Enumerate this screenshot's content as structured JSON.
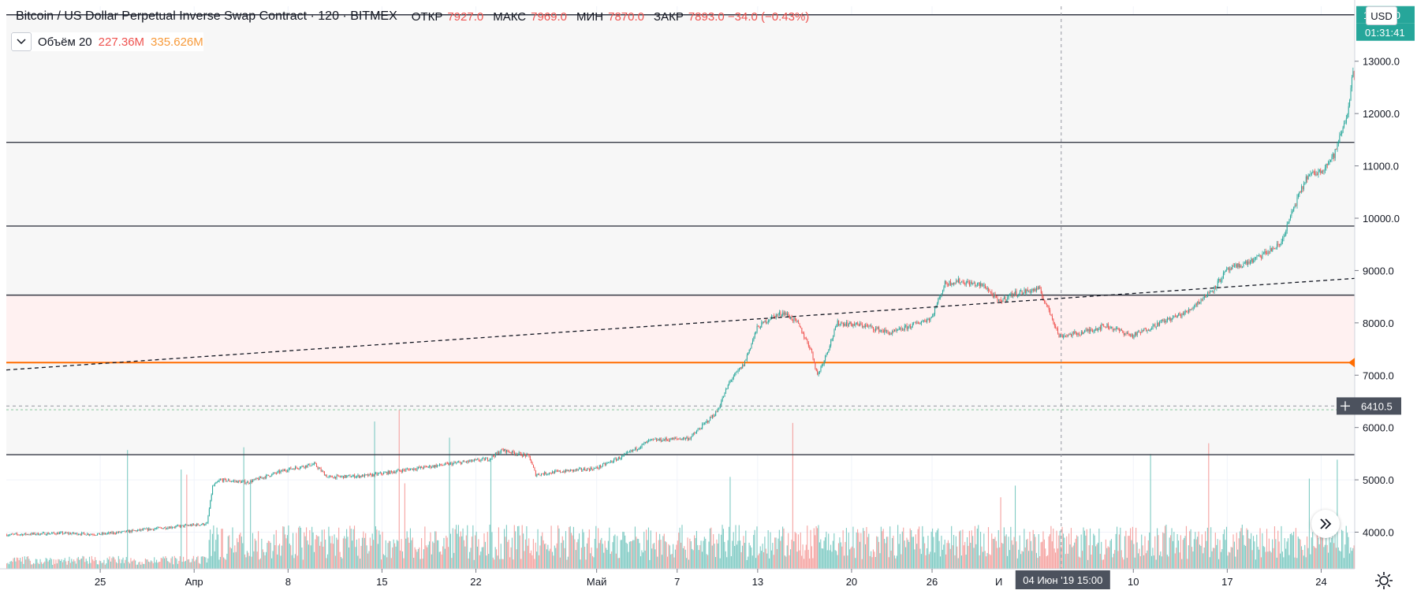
{
  "header": {
    "title": "Bitcoin / US Dollar Perpetual Inverse Swap Contract · 120 · BITMEX",
    "ohlc": [
      {
        "label": "ОТКР",
        "value": "7927.0"
      },
      {
        "label": "МАКС",
        "value": "7969.0"
      },
      {
        "label": "МИН",
        "value": "7870.0"
      },
      {
        "label": "ЗАКР",
        "value": "7893.0 −34.0 (−0.43%)"
      }
    ]
  },
  "volume_legend": {
    "name": "Объём 20",
    "value1": "227.36M",
    "value2": "335.626M"
  },
  "price_axis": {
    "unit": "USD",
    "last_price_label": "13888.0",
    "countdown_label": "01:31:41",
    "crosshair_price_label": "6410.5"
  },
  "time_axis": {
    "crosshair_label": "04 Июн '19   15:00",
    "hidden_label": "И"
  },
  "icons": {
    "collapse": "chevron-down-icon",
    "scroll": "double-chevron-right-icon",
    "settings": "gear-icon"
  },
  "colors": {
    "up": "#26a69a",
    "down": "#ef5350",
    "up_volume": "#80cbc4",
    "down_volume": "#f5a3a1",
    "highlight_line": "#ff6d00",
    "zone_fill": "#fff1f1",
    "label_green": "#26a69a",
    "label_dark": "#4c525e"
  },
  "chart_data": {
    "type": "candlestick",
    "price_ticks": [
      4000,
      5000,
      6000,
      7000,
      8000,
      9000,
      10000,
      11000,
      12000,
      13000
    ],
    "price_tick_labels": [
      "4000.0",
      "5000.0",
      "6000.0",
      "7000.0",
      "8000.0",
      "9000.0",
      "10000.0",
      "11000.0",
      "12000.0",
      "13000.0"
    ],
    "ylim": [
      3300,
      14050
    ],
    "xlim": [
      "2019-03-18",
      "2019-06-26T12:00"
    ],
    "date_ticks": [
      {
        "date": "2019-03-25",
        "label": "25"
      },
      {
        "date": "2019-04-01",
        "label": "Апр"
      },
      {
        "date": "2019-04-08",
        "label": "8"
      },
      {
        "date": "2019-04-15",
        "label": "15"
      },
      {
        "date": "2019-04-22",
        "label": "22"
      },
      {
        "date": "2019-05-01",
        "label": "Май"
      },
      {
        "date": "2019-05-07",
        "label": "7"
      },
      {
        "date": "2019-05-13",
        "label": "13"
      },
      {
        "date": "2019-05-20",
        "label": "20"
      },
      {
        "date": "2019-05-26",
        "label": "26"
      },
      {
        "date": "2019-06-10",
        "label": "10"
      },
      {
        "date": "2019-06-17",
        "label": "17"
      },
      {
        "date": "2019-06-24",
        "label": "24"
      }
    ],
    "price_path": [
      [
        "2019-03-18",
        3950
      ],
      [
        "2019-03-22",
        3980
      ],
      [
        "2019-03-25",
        3960
      ],
      [
        "2019-03-27",
        4010
      ],
      [
        "2019-03-30",
        4090
      ],
      [
        "2019-04-02",
        4160
      ],
      [
        "2019-04-02T10:00",
        4870
      ],
      [
        "2019-04-03",
        5000
      ],
      [
        "2019-04-05",
        4950
      ],
      [
        "2019-04-08",
        5200
      ],
      [
        "2019-04-10",
        5300
      ],
      [
        "2019-04-11",
        5050
      ],
      [
        "2019-04-14",
        5080
      ],
      [
        "2019-04-17",
        5200
      ],
      [
        "2019-04-20",
        5300
      ],
      [
        "2019-04-23",
        5400
      ],
      [
        "2019-04-24",
        5570
      ],
      [
        "2019-04-26",
        5450
      ],
      [
        "2019-04-26T12:00",
        5100
      ],
      [
        "2019-04-28",
        5150
      ],
      [
        "2019-05-01",
        5220
      ],
      [
        "2019-05-03",
        5450
      ],
      [
        "2019-05-05",
        5750
      ],
      [
        "2019-05-08",
        5800
      ],
      [
        "2019-05-10",
        6300
      ],
      [
        "2019-05-11",
        6900
      ],
      [
        "2019-05-12",
        7200
      ],
      [
        "2019-05-13",
        7900
      ],
      [
        "2019-05-14",
        8100
      ],
      [
        "2019-05-15",
        8200
      ],
      [
        "2019-05-16",
        8000
      ],
      [
        "2019-05-17",
        7500
      ],
      [
        "2019-05-17T12:00",
        7000
      ],
      [
        "2019-05-18",
        7300
      ],
      [
        "2019-05-19",
        8000
      ],
      [
        "2019-05-21",
        7950
      ],
      [
        "2019-05-23",
        7800
      ],
      [
        "2019-05-25",
        8000
      ],
      [
        "2019-05-26",
        8100
      ],
      [
        "2019-05-27",
        8750
      ],
      [
        "2019-05-28",
        8800
      ],
      [
        "2019-05-30",
        8700
      ],
      [
        "2019-05-31",
        8400
      ],
      [
        "2019-06-01",
        8550
      ],
      [
        "2019-06-03",
        8650
      ],
      [
        "2019-06-04",
        8100
      ],
      [
        "2019-06-04T12:00",
        7750
      ],
      [
        "2019-06-06",
        7800
      ],
      [
        "2019-06-08",
        7950
      ],
      [
        "2019-06-10",
        7750
      ],
      [
        "2019-06-12",
        8000
      ],
      [
        "2019-06-14",
        8200
      ],
      [
        "2019-06-16",
        8650
      ],
      [
        "2019-06-17",
        9000
      ],
      [
        "2019-06-19",
        9200
      ],
      [
        "2019-06-21",
        9500
      ],
      [
        "2019-06-22",
        10200
      ],
      [
        "2019-06-23",
        10800
      ],
      [
        "2019-06-24",
        10900
      ],
      [
        "2019-06-25",
        11200
      ],
      [
        "2019-06-26",
        12000
      ],
      [
        "2019-06-26T10:00",
        12800
      ],
      [
        "2019-06-26T12:00",
        12750
      ]
    ],
    "horizontal_levels": [
      13888,
      11450,
      9850,
      8530,
      7240,
      5480
    ],
    "highlight_level": 7240,
    "zone": [
      7240,
      8530
    ],
    "trend_line": {
      "from": [
        "2019-03-18",
        7100
      ],
      "to": [
        "2019-06-26T12:00",
        8850
      ]
    },
    "crosshair": {
      "date": "2019-06-04T15:00",
      "price": 6410.5
    },
    "dashed_level": 6340,
    "grid": true,
    "legend": "top-left"
  }
}
